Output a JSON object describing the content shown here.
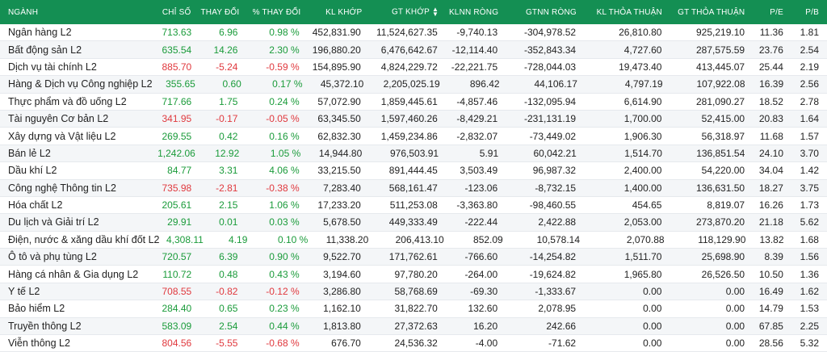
{
  "colors": {
    "header_bg": "#148f53",
    "up": "#1a9b3a",
    "down": "#e0393e"
  },
  "headers": {
    "nganh": "NGÀNH",
    "chiso": "CHỈ SỐ",
    "thaydoi": "THAY ĐỔI",
    "pct": "% THAY ĐỔI",
    "kl": "KL KHỚP",
    "gt": "GT KHỚP",
    "klnn": "KLNN RÒNG",
    "gtnn": "GTNN RÒNG",
    "kltt": "KL THỎA THUẬN",
    "gttt": "GT THỎA THUẬN",
    "pe": "P/E",
    "pb": "P/B"
  },
  "rows": [
    {
      "name": "Ngân hàng L2",
      "chiso": "713.63",
      "thaydoi": "6.96",
      "pct": "0.98 %",
      "kl": "452,831.90",
      "gt": "11,524,627.35",
      "klnn": "-9,740.13",
      "gtnn": "-304,978.52",
      "kltt": "26,810.80",
      "gttt": "925,219.10",
      "pe": "11.36",
      "pb": "1.81",
      "dir": "up"
    },
    {
      "name": "Bất động sản L2",
      "chiso": "635.54",
      "thaydoi": "14.26",
      "pct": "2.30 %",
      "kl": "196,880.20",
      "gt": "6,476,642.67",
      "klnn": "-12,114.40",
      "gtnn": "-352,843.34",
      "kltt": "4,727.60",
      "gttt": "287,575.59",
      "pe": "23.76",
      "pb": "2.54",
      "dir": "up"
    },
    {
      "name": "Dịch vụ tài chính L2",
      "chiso": "885.70",
      "thaydoi": "-5.24",
      "pct": "-0.59 %",
      "kl": "154,895.90",
      "gt": "4,824,229.72",
      "klnn": "-22,221.75",
      "gtnn": "-728,044.03",
      "kltt": "19,473.40",
      "gttt": "413,445.07",
      "pe": "25.44",
      "pb": "2.19",
      "dir": "down"
    },
    {
      "name": "Hàng & Dịch vụ Công nghiệp L2",
      "chiso": "355.65",
      "thaydoi": "0.60",
      "pct": "0.17 %",
      "kl": "45,372.10",
      "gt": "2,205,025.19",
      "klnn": "896.42",
      "gtnn": "44,106.17",
      "kltt": "4,797.19",
      "gttt": "107,922.08",
      "pe": "16.39",
      "pb": "2.56",
      "dir": "up"
    },
    {
      "name": "Thực phẩm và đồ uống L2",
      "chiso": "717.66",
      "thaydoi": "1.75",
      "pct": "0.24 %",
      "kl": "57,072.90",
      "gt": "1,859,445.61",
      "klnn": "-4,857.46",
      "gtnn": "-132,095.94",
      "kltt": "6,614.90",
      "gttt": "281,090.27",
      "pe": "18.52",
      "pb": "2.78",
      "dir": "up"
    },
    {
      "name": "Tài nguyên Cơ bản L2",
      "chiso": "341.95",
      "thaydoi": "-0.17",
      "pct": "-0.05 %",
      "kl": "63,345.50",
      "gt": "1,597,460.26",
      "klnn": "-8,429.21",
      "gtnn": "-231,131.19",
      "kltt": "1,700.00",
      "gttt": "52,415.00",
      "pe": "20.83",
      "pb": "1.64",
      "dir": "down"
    },
    {
      "name": "Xây dựng và Vật liệu L2",
      "chiso": "269.55",
      "thaydoi": "0.42",
      "pct": "0.16 %",
      "kl": "62,832.30",
      "gt": "1,459,234.86",
      "klnn": "-2,832.07",
      "gtnn": "-73,449.02",
      "kltt": "1,906.30",
      "gttt": "56,318.97",
      "pe": "11.68",
      "pb": "1.57",
      "dir": "up"
    },
    {
      "name": "Bán lẻ L2",
      "chiso": "1,242.06",
      "thaydoi": "12.92",
      "pct": "1.05 %",
      "kl": "14,944.80",
      "gt": "976,503.91",
      "klnn": "5.91",
      "gtnn": "60,042.21",
      "kltt": "1,514.70",
      "gttt": "136,851.54",
      "pe": "24.10",
      "pb": "3.70",
      "dir": "up"
    },
    {
      "name": "Dầu khí L2",
      "chiso": "84.77",
      "thaydoi": "3.31",
      "pct": "4.06 %",
      "kl": "33,215.50",
      "gt": "891,444.45",
      "klnn": "3,503.49",
      "gtnn": "96,987.32",
      "kltt": "2,400.00",
      "gttt": "54,220.00",
      "pe": "34.04",
      "pb": "1.42",
      "dir": "up"
    },
    {
      "name": "Công nghệ Thông tin L2",
      "chiso": "735.98",
      "thaydoi": "-2.81",
      "pct": "-0.38 %",
      "kl": "7,283.40",
      "gt": "568,161.47",
      "klnn": "-123.06",
      "gtnn": "-8,732.15",
      "kltt": "1,400.00",
      "gttt": "136,631.50",
      "pe": "18.27",
      "pb": "3.75",
      "dir": "down"
    },
    {
      "name": "Hóa chất L2",
      "chiso": "205.61",
      "thaydoi": "2.15",
      "pct": "1.06 %",
      "kl": "17,233.20",
      "gt": "511,253.08",
      "klnn": "-3,363.80",
      "gtnn": "-98,460.55",
      "kltt": "454.65",
      "gttt": "8,819.07",
      "pe": "16.26",
      "pb": "1.73",
      "dir": "up"
    },
    {
      "name": "Du lịch và Giải trí L2",
      "chiso": "29.91",
      "thaydoi": "0.01",
      "pct": "0.03 %",
      "kl": "5,678.50",
      "gt": "449,333.49",
      "klnn": "-222.44",
      "gtnn": "2,422.88",
      "kltt": "2,053.00",
      "gttt": "273,870.20",
      "pe": "21.18",
      "pb": "5.62",
      "dir": "up"
    },
    {
      "name": "Điện, nước & xăng dầu khí đốt L2",
      "chiso": "4,308.11",
      "thaydoi": "4.19",
      "pct": "0.10 %",
      "kl": "11,338.20",
      "gt": "206,413.10",
      "klnn": "852.09",
      "gtnn": "10,578.14",
      "kltt": "2,070.88",
      "gttt": "118,129.90",
      "pe": "13.82",
      "pb": "1.68",
      "dir": "up"
    },
    {
      "name": "Ô tô và phụ tùng L2",
      "chiso": "720.57",
      "thaydoi": "6.39",
      "pct": "0.90 %",
      "kl": "9,522.70",
      "gt": "171,762.61",
      "klnn": "-766.60",
      "gtnn": "-14,254.82",
      "kltt": "1,511.70",
      "gttt": "25,698.90",
      "pe": "8.39",
      "pb": "1.56",
      "dir": "up"
    },
    {
      "name": "Hàng cá nhân & Gia dụng L2",
      "chiso": "110.72",
      "thaydoi": "0.48",
      "pct": "0.43 %",
      "kl": "3,194.60",
      "gt": "97,780.20",
      "klnn": "-264.00",
      "gtnn": "-19,624.82",
      "kltt": "1,965.80",
      "gttt": "26,526.50",
      "pe": "10.50",
      "pb": "1.36",
      "dir": "up"
    },
    {
      "name": "Y tế L2",
      "chiso": "708.55",
      "thaydoi": "-0.82",
      "pct": "-0.12 %",
      "kl": "3,286.80",
      "gt": "58,768.69",
      "klnn": "-69.30",
      "gtnn": "-1,333.67",
      "kltt": "0.00",
      "gttt": "0.00",
      "pe": "16.49",
      "pb": "1.62",
      "dir": "down"
    },
    {
      "name": "Bảo hiểm L2",
      "chiso": "284.40",
      "thaydoi": "0.65",
      "pct": "0.23 %",
      "kl": "1,162.10",
      "gt": "31,822.70",
      "klnn": "132.60",
      "gtnn": "2,078.95",
      "kltt": "0.00",
      "gttt": "0.00",
      "pe": "14.79",
      "pb": "1.53",
      "dir": "up"
    },
    {
      "name": "Truyền thông L2",
      "chiso": "583.09",
      "thaydoi": "2.54",
      "pct": "0.44 %",
      "kl": "1,813.80",
      "gt": "27,372.63",
      "klnn": "16.20",
      "gtnn": "242.66",
      "kltt": "0.00",
      "gttt": "0.00",
      "pe": "67.85",
      "pb": "2.25",
      "dir": "up"
    },
    {
      "name": "Viễn thông L2",
      "chiso": "804.56",
      "thaydoi": "-5.55",
      "pct": "-0.68 %",
      "kl": "676.70",
      "gt": "24,536.32",
      "klnn": "-4.00",
      "gtnn": "-71.62",
      "kltt": "0.00",
      "gttt": "0.00",
      "pe": "28.56",
      "pb": "5.32",
      "dir": "down"
    }
  ]
}
